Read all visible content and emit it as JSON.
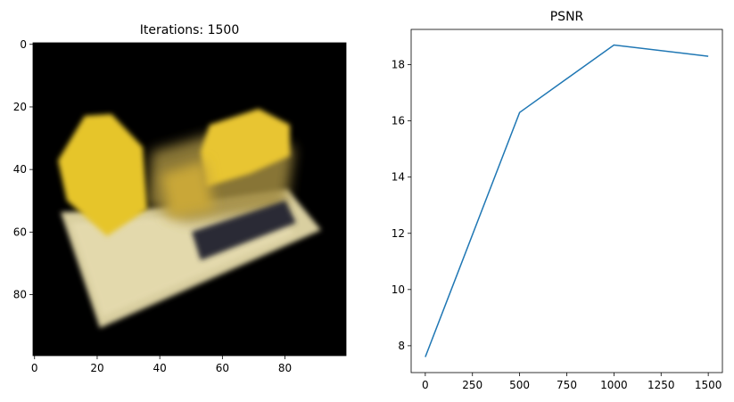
{
  "chart_data": [
    {
      "type": "image",
      "title": "Iterations: 1500",
      "xlim": [
        -0.5,
        99.5
      ],
      "ylim": [
        99.5,
        -0.5
      ],
      "xticks": [
        0,
        20,
        40,
        60,
        80
      ],
      "yticks": [
        0,
        20,
        40,
        60,
        80
      ]
    },
    {
      "type": "line",
      "title": "PSNR",
      "x": [
        0,
        500,
        1000,
        1500
      ],
      "values": [
        7.6,
        16.3,
        18.7,
        18.3
      ],
      "color": "#1f77b4",
      "xlim": [
        -75,
        1575
      ],
      "ylim": [
        7.045,
        19.255
      ],
      "xticks": [
        0,
        250,
        500,
        750,
        1000,
        1250,
        1500
      ],
      "yticks": [
        8,
        10,
        12,
        14,
        16,
        18
      ]
    }
  ]
}
